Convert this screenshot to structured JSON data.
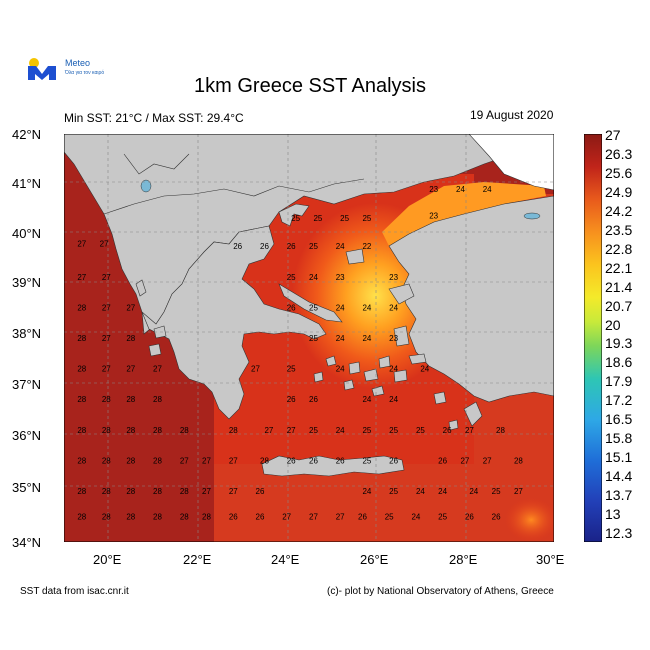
{
  "header": {
    "logo_name": "Meteo",
    "logo_subtitle": "Όλα για τον καιρό",
    "title": "1km Greece SST Analysis",
    "min_max": "Min SST: 21°C / Max SST: 29.4°C",
    "date": "19 August 2020"
  },
  "axes": {
    "lat_labels": [
      "42°N",
      "41°N",
      "40°N",
      "39°N",
      "38°N",
      "37°N",
      "36°N",
      "35°N",
      "34°N"
    ],
    "lon_labels": [
      "20°E",
      "22°E",
      "24°E",
      "26°E",
      "28°E",
      "30°E"
    ]
  },
  "colorbar": {
    "labels": [
      "27",
      "26.3",
      "25.6",
      "24.9",
      "24.2",
      "23.5",
      "22.8",
      "22.1",
      "21.4",
      "20.7",
      "20",
      "19.3",
      "18.6",
      "17.9",
      "17.2",
      "16.5",
      "15.8",
      "15.1",
      "14.4",
      "13.7",
      "13",
      "12.3"
    ]
  },
  "map_values": [
    {
      "v": "27",
      "lon": 19.4,
      "lat": 39.85
    },
    {
      "v": "27",
      "lon": 19.9,
      "lat": 39.85
    },
    {
      "v": "27",
      "lon": 19.4,
      "lat": 39.2
    },
    {
      "v": "27",
      "lon": 19.95,
      "lat": 39.2
    },
    {
      "v": "28",
      "lon": 19.4,
      "lat": 38.6
    },
    {
      "v": "27",
      "lon": 19.95,
      "lat": 38.6
    },
    {
      "v": "27",
      "lon": 20.5,
      "lat": 38.6
    },
    {
      "v": "28",
      "lon": 19.4,
      "lat": 38.0
    },
    {
      "v": "27",
      "lon": 19.95,
      "lat": 38.0
    },
    {
      "v": "28",
      "lon": 20.5,
      "lat": 38.0
    },
    {
      "v": "28",
      "lon": 19.4,
      "lat": 37.4
    },
    {
      "v": "27",
      "lon": 19.95,
      "lat": 37.4
    },
    {
      "v": "27",
      "lon": 20.5,
      "lat": 37.4
    },
    {
      "v": "27",
      "lon": 21.1,
      "lat": 37.4
    },
    {
      "v": "28",
      "lon": 19.4,
      "lat": 36.8
    },
    {
      "v": "28",
      "lon": 19.95,
      "lat": 36.8
    },
    {
      "v": "28",
      "lon": 20.5,
      "lat": 36.8
    },
    {
      "v": "28",
      "lon": 21.1,
      "lat": 36.8
    },
    {
      "v": "28",
      "lon": 19.4,
      "lat": 36.2
    },
    {
      "v": "28",
      "lon": 19.95,
      "lat": 36.2
    },
    {
      "v": "28",
      "lon": 20.5,
      "lat": 36.2
    },
    {
      "v": "28",
      "lon": 21.1,
      "lat": 36.2
    },
    {
      "v": "28",
      "lon": 21.7,
      "lat": 36.2
    },
    {
      "v": "28",
      "lon": 19.4,
      "lat": 35.6
    },
    {
      "v": "28",
      "lon": 19.95,
      "lat": 35.6
    },
    {
      "v": "28",
      "lon": 20.5,
      "lat": 35.6
    },
    {
      "v": "28",
      "lon": 21.1,
      "lat": 35.6
    },
    {
      "v": "27",
      "lon": 21.7,
      "lat": 35.6
    },
    {
      "v": "27",
      "lon": 22.2,
      "lat": 35.6
    },
    {
      "v": "27",
      "lon": 22.8,
      "lat": 35.6
    },
    {
      "v": "28",
      "lon": 19.4,
      "lat": 35.0
    },
    {
      "v": "28",
      "lon": 19.95,
      "lat": 35.0
    },
    {
      "v": "28",
      "lon": 20.5,
      "lat": 35.0
    },
    {
      "v": "28",
      "lon": 21.1,
      "lat": 35.0
    },
    {
      "v": "28",
      "lon": 21.7,
      "lat": 35.0
    },
    {
      "v": "27",
      "lon": 22.2,
      "lat": 35.0
    },
    {
      "v": "27",
      "lon": 22.8,
      "lat": 35.0
    },
    {
      "v": "28",
      "lon": 19.4,
      "lat": 34.5
    },
    {
      "v": "28",
      "lon": 19.95,
      "lat": 34.5
    },
    {
      "v": "28",
      "lon": 20.5,
      "lat": 34.5
    },
    {
      "v": "28",
      "lon": 21.1,
      "lat": 34.5
    },
    {
      "v": "28",
      "lon": 21.7,
      "lat": 34.5
    },
    {
      "v": "28",
      "lon": 22.2,
      "lat": 34.5
    },
    {
      "v": "26",
      "lon": 22.8,
      "lat": 34.5
    },
    {
      "v": "26",
      "lon": 23.4,
      "lat": 34.5
    },
    {
      "v": "27",
      "lon": 24.0,
      "lat": 34.5
    },
    {
      "v": "27",
      "lon": 24.6,
      "lat": 34.5
    },
    {
      "v": "27",
      "lon": 25.2,
      "lat": 34.5
    },
    {
      "v": "26",
      "lon": 25.7,
      "lat": 34.5
    },
    {
      "v": "25",
      "lon": 26.3,
      "lat": 34.5
    },
    {
      "v": "24",
      "lon": 26.9,
      "lat": 34.5
    },
    {
      "v": "25",
      "lon": 27.5,
      "lat": 34.5
    },
    {
      "v": "26",
      "lon": 28.1,
      "lat": 34.5
    },
    {
      "v": "26",
      "lon": 28.7,
      "lat": 34.5
    },
    {
      "v": "26",
      "lon": 23.4,
      "lat": 35.0
    },
    {
      "v": "24",
      "lon": 25.8,
      "lat": 35.0
    },
    {
      "v": "25",
      "lon": 26.4,
      "lat": 35.0
    },
    {
      "v": "24",
      "lon": 27.0,
      "lat": 35.0
    },
    {
      "v": "24",
      "lon": 27.5,
      "lat": 35.0
    },
    {
      "v": "24",
      "lon": 28.2,
      "lat": 35.0
    },
    {
      "v": "25",
      "lon": 28.7,
      "lat": 35.0
    },
    {
      "v": "27",
      "lon": 29.2,
      "lat": 35.0
    },
    {
      "v": "28",
      "lon": 23.5,
      "lat": 35.6
    },
    {
      "v": "26",
      "lon": 24.1,
      "lat": 35.6
    },
    {
      "v": "26",
      "lon": 24.6,
      "lat": 35.6
    },
    {
      "v": "26",
      "lon": 25.2,
      "lat": 35.6
    },
    {
      "v": "25",
      "lon": 25.8,
      "lat": 35.6
    },
    {
      "v": "26",
      "lon": 26.4,
      "lat": 35.6
    },
    {
      "v": "26",
      "lon": 27.5,
      "lat": 35.6
    },
    {
      "v": "27",
      "lon": 28.0,
      "lat": 35.6
    },
    {
      "v": "27",
      "lon": 28.5,
      "lat": 35.6
    },
    {
      "v": "28",
      "lon": 29.2,
      "lat": 35.6
    },
    {
      "v": "28",
      "lon": 22.8,
      "lat": 36.2
    },
    {
      "v": "27",
      "lon": 23.6,
      "lat": 36.2
    },
    {
      "v": "27",
      "lon": 24.1,
      "lat": 36.2
    },
    {
      "v": "25",
      "lon": 24.6,
      "lat": 36.2
    },
    {
      "v": "24",
      "lon": 25.2,
      "lat": 36.2
    },
    {
      "v": "25",
      "lon": 25.8,
      "lat": 36.2
    },
    {
      "v": "25",
      "lon": 26.4,
      "lat": 36.2
    },
    {
      "v": "25",
      "lon": 27.0,
      "lat": 36.2
    },
    {
      "v": "26",
      "lon": 27.6,
      "lat": 36.2
    },
    {
      "v": "27",
      "lon": 28.1,
      "lat": 36.2
    },
    {
      "v": "28",
      "lon": 28.8,
      "lat": 36.2
    },
    {
      "v": "26",
      "lon": 24.1,
      "lat": 36.8
    },
    {
      "v": "26",
      "lon": 24.6,
      "lat": 36.8
    },
    {
      "v": "24",
      "lon": 25.8,
      "lat": 36.8
    },
    {
      "v": "24",
      "lon": 26.4,
      "lat": 36.8
    },
    {
      "v": "27",
      "lon": 23.3,
      "lat": 37.4
    },
    {
      "v": "25",
      "lon": 24.1,
      "lat": 37.4
    },
    {
      "v": "24",
      "lon": 25.2,
      "lat": 37.4
    },
    {
      "v": "24",
      "lon": 26.4,
      "lat": 37.4
    },
    {
      "v": "24",
      "lon": 27.1,
      "lat": 37.4
    },
    {
      "v": "25",
      "lon": 24.6,
      "lat": 38.0
    },
    {
      "v": "24",
      "lon": 25.2,
      "lat": 38.0
    },
    {
      "v": "24",
      "lon": 25.8,
      "lat": 38.0
    },
    {
      "v": "23",
      "lon": 26.4,
      "lat": 38.0
    },
    {
      "v": "26",
      "lon": 24.1,
      "lat": 38.6
    },
    {
      "v": "25",
      "lon": 24.6,
      "lat": 38.6
    },
    {
      "v": "24",
      "lon": 25.2,
      "lat": 38.6
    },
    {
      "v": "24",
      "lon": 25.8,
      "lat": 38.6
    },
    {
      "v": "24",
      "lon": 26.4,
      "lat": 38.6
    },
    {
      "v": "25",
      "lon": 24.1,
      "lat": 39.2
    },
    {
      "v": "24",
      "lon": 24.6,
      "lat": 39.2
    },
    {
      "v": "23",
      "lon": 25.2,
      "lat": 39.2
    },
    {
      "v": "23",
      "lon": 26.4,
      "lat": 39.2
    },
    {
      "v": "26",
      "lon": 22.9,
      "lat": 39.8
    },
    {
      "v": "26",
      "lon": 23.5,
      "lat": 39.8
    },
    {
      "v": "26",
      "lon": 24.1,
      "lat": 39.8
    },
    {
      "v": "25",
      "lon": 24.6,
      "lat": 39.8
    },
    {
      "v": "24",
      "lon": 25.2,
      "lat": 39.8
    },
    {
      "v": "22",
      "lon": 25.8,
      "lat": 39.8
    },
    {
      "v": "25",
      "lon": 24.2,
      "lat": 40.35
    },
    {
      "v": "25",
      "lon": 24.7,
      "lat": 40.35
    },
    {
      "v": "25",
      "lon": 25.3,
      "lat": 40.35
    },
    {
      "v": "25",
      "lon": 25.8,
      "lat": 40.35
    },
    {
      "v": "23",
      "lon": 27.3,
      "lat": 40.4
    },
    {
      "v": "23",
      "lon": 27.3,
      "lat": 40.92
    },
    {
      "v": "24",
      "lon": 27.9,
      "lat": 40.92
    },
    {
      "v": "24",
      "lon": 28.5,
      "lat": 40.92
    }
  ],
  "footer": {
    "source": "SST data from isac.cnr.it",
    "credit": "(c)- plot by National Observatory of Athens, Greece"
  }
}
